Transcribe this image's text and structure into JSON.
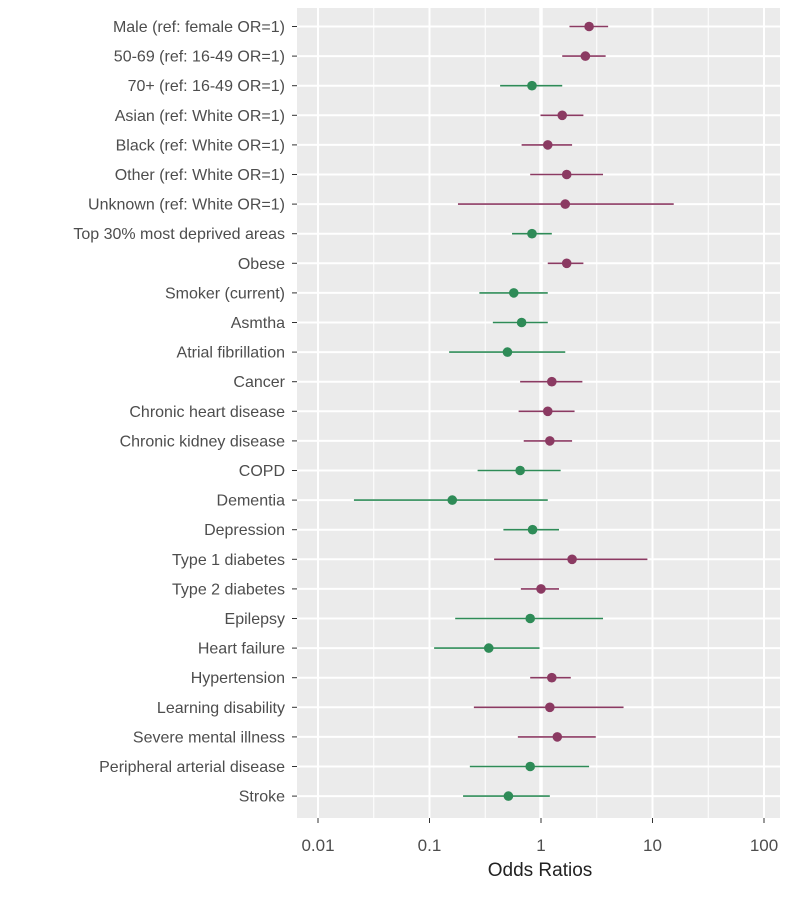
{
  "chart_data": {
    "type": "scatter",
    "subtype": "forest-plot",
    "title": "",
    "xlabel": "Odds Ratios",
    "ylabel": "",
    "x_scale": "log10",
    "xlim": [
      0.005,
      200
    ],
    "x_ticks": [
      0.01,
      0.1,
      1,
      10,
      100
    ],
    "x_tick_labels": [
      "0.01",
      "0.1",
      "1",
      "10",
      "100"
    ],
    "reference_line": 1,
    "grid": true,
    "legend": "none",
    "colors": {
      "above_one": "#8b3a62",
      "below_one": "#2e8b57",
      "panel": "#ebebeb",
      "grid": "#ffffff"
    },
    "rows": [
      {
        "label": "Male (ref: female OR=1)",
        "or": 2.7,
        "lo": 1.8,
        "hi": 4.0,
        "group": "above_one"
      },
      {
        "label": "50-69 (ref: 16-49 OR=1)",
        "or": 2.5,
        "lo": 1.55,
        "hi": 3.8,
        "group": "above_one"
      },
      {
        "label": "70+ (ref: 16-49 OR=1)",
        "or": 0.83,
        "lo": 0.43,
        "hi": 1.55,
        "group": "below_one"
      },
      {
        "label": "Asian  (ref: White OR=1)",
        "or": 1.55,
        "lo": 0.99,
        "hi": 2.4,
        "group": "above_one"
      },
      {
        "label": "Black (ref: White OR=1)",
        "or": 1.15,
        "lo": 0.67,
        "hi": 1.9,
        "group": "above_one"
      },
      {
        "label": "Other (ref: White OR=1)",
        "or": 1.7,
        "lo": 0.8,
        "hi": 3.6,
        "group": "above_one"
      },
      {
        "label": "Unknown (ref: White OR=1)",
        "or": 1.65,
        "lo": 0.18,
        "hi": 15.5,
        "group": "above_one"
      },
      {
        "label": "Top 30% most deprived areas",
        "or": 0.83,
        "lo": 0.55,
        "hi": 1.25,
        "group": "below_one"
      },
      {
        "label": "Obese",
        "or": 1.7,
        "lo": 1.15,
        "hi": 2.4,
        "group": "above_one"
      },
      {
        "label": "Smoker (current)",
        "or": 0.57,
        "lo": 0.28,
        "hi": 1.15,
        "group": "below_one"
      },
      {
        "label": "Asmtha",
        "or": 0.67,
        "lo": 0.37,
        "hi": 1.15,
        "group": "below_one"
      },
      {
        "label": "Atrial fibrillation",
        "or": 0.5,
        "lo": 0.15,
        "hi": 1.65,
        "group": "below_one"
      },
      {
        "label": "Cancer",
        "or": 1.25,
        "lo": 0.65,
        "hi": 2.35,
        "group": "above_one"
      },
      {
        "label": "Chronic heart disease",
        "or": 1.15,
        "lo": 0.63,
        "hi": 2.0,
        "group": "above_one"
      },
      {
        "label": "Chronic kidney disease",
        "or": 1.2,
        "lo": 0.7,
        "hi": 1.9,
        "group": "above_one"
      },
      {
        "label": "COPD",
        "or": 0.65,
        "lo": 0.27,
        "hi": 1.5,
        "group": "below_one"
      },
      {
        "label": "Dementia",
        "or": 0.16,
        "lo": 0.021,
        "hi": 1.15,
        "group": "below_one"
      },
      {
        "label": "Depression",
        "or": 0.84,
        "lo": 0.46,
        "hi": 1.45,
        "group": "below_one"
      },
      {
        "label": "Type 1 diabetes",
        "or": 1.9,
        "lo": 0.38,
        "hi": 9.0,
        "group": "above_one"
      },
      {
        "label": "Type 2 diabetes",
        "or": 1.0,
        "lo": 0.66,
        "hi": 1.45,
        "group": "above_one"
      },
      {
        "label": "Epilepsy",
        "or": 0.8,
        "lo": 0.17,
        "hi": 3.6,
        "group": "below_one"
      },
      {
        "label": "Heart failure",
        "or": 0.34,
        "lo": 0.11,
        "hi": 0.97,
        "group": "below_one"
      },
      {
        "label": "Hypertension",
        "or": 1.25,
        "lo": 0.8,
        "hi": 1.85,
        "group": "above_one"
      },
      {
        "label": "Learning disability",
        "or": 1.2,
        "lo": 0.25,
        "hi": 5.5,
        "group": "above_one"
      },
      {
        "label": "Severe mental illness",
        "or": 1.4,
        "lo": 0.62,
        "hi": 3.1,
        "group": "above_one"
      },
      {
        "label": "Peripheral arterial disease",
        "or": 0.8,
        "lo": 0.23,
        "hi": 2.7,
        "group": "below_one"
      },
      {
        "label": "Stroke",
        "or": 0.51,
        "lo": 0.2,
        "hi": 1.2,
        "group": "below_one"
      }
    ]
  }
}
